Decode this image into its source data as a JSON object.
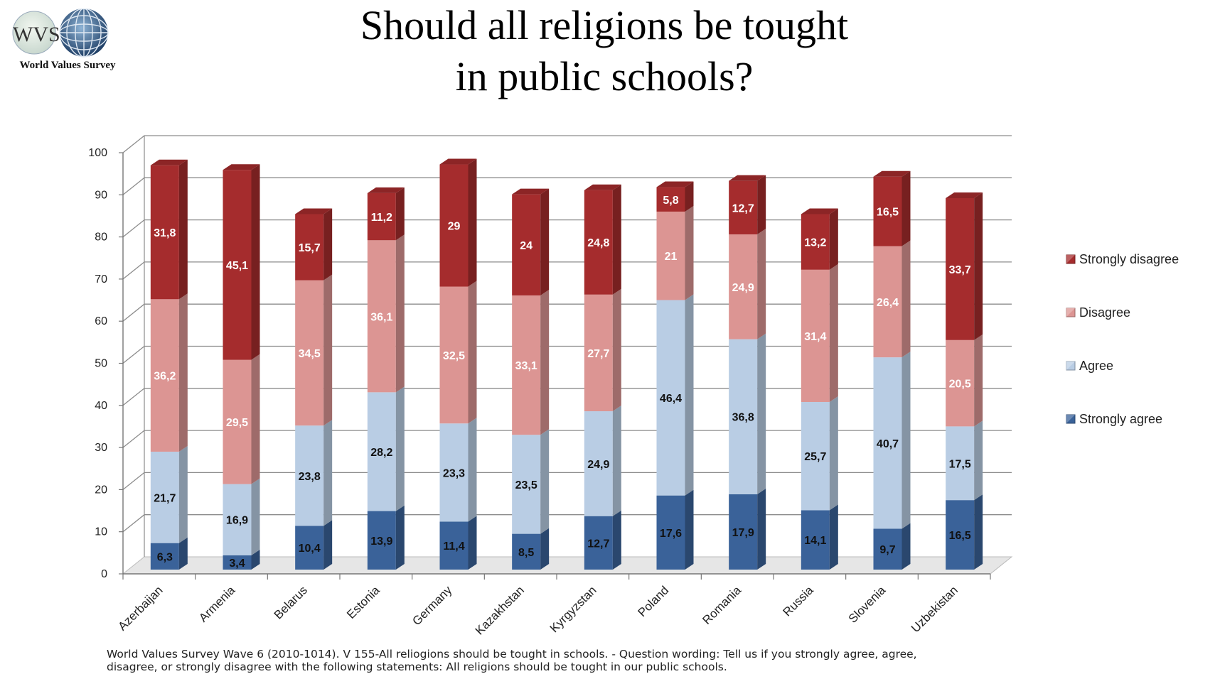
{
  "logo": {
    "mark": "WVS",
    "caption": "World Values Survey",
    "icon": "globe-icon"
  },
  "title": {
    "line1": "Should all religions be tought",
    "line2": "in public schools?"
  },
  "footnote": {
    "line1": "World Values Survey Wave 6 (2010-1014). V 155-All reliogions should be tought in schools. - Question wording: Tell us if you strongly agree, agree,",
    "line2": "disagree, or strongly disagree with the following statements: All religions should be tought in our public schools."
  },
  "colors": {
    "strongly_agree": "#3a6299",
    "agree": "#b9cde4",
    "disagree": "#dc9593",
    "strongly_disagree": "#a52c2d"
  },
  "chart_data": {
    "type": "bar",
    "stacked": true,
    "categories": [
      "Azerbaijan",
      "Armenia",
      "Belarus",
      "Estonia",
      "Germany",
      "Kazakhstan",
      "Kyrgyzstan",
      "Poland",
      "Romania",
      "Russia",
      "Slovenia",
      "Uzbekistan"
    ],
    "series": [
      {
        "name": "Strongly agree",
        "values": [
          6.3,
          3.4,
          10.4,
          13.9,
          11.4,
          8.5,
          12.7,
          17.6,
          17.9,
          14.1,
          9.7,
          16.5
        ],
        "labels": [
          "6,3",
          "3,4",
          "10,4",
          "13,9",
          "11,4",
          "8,5",
          "12,7",
          "17,6",
          "17,9",
          "14,1",
          "9,7",
          "16,5"
        ]
      },
      {
        "name": "Agree",
        "values": [
          21.7,
          16.9,
          23.8,
          28.2,
          23.3,
          23.5,
          24.9,
          46.4,
          36.8,
          25.7,
          40.7,
          17.5
        ],
        "labels": [
          "21,7",
          "16,9",
          "23,8",
          "28,2",
          "23,3",
          "23,5",
          "24,9",
          "46,4",
          "36,8",
          "25,7",
          "40,7",
          "17,5"
        ]
      },
      {
        "name": "Disagree",
        "values": [
          36.2,
          29.5,
          34.5,
          36.1,
          32.5,
          33.1,
          27.7,
          21,
          24.9,
          31.4,
          26.4,
          20.5
        ],
        "labels": [
          "36,2",
          "29,5",
          "34,5",
          "36,1",
          "32,5",
          "33,1",
          "27,7",
          "21",
          "24,9",
          "31,4",
          "26,4",
          "20,5"
        ]
      },
      {
        "name": "Strongly disagree",
        "values": [
          31.8,
          45.1,
          15.7,
          11.2,
          29,
          24,
          24.8,
          5.8,
          12.7,
          13.2,
          16.5,
          33.7
        ],
        "labels": [
          "31,8",
          "45,1",
          "15,7",
          "11,2",
          "29",
          "24",
          "24,8",
          "5,8",
          "12,7",
          "13,2",
          "16,5",
          "33,7"
        ]
      }
    ],
    "legend": [
      "Strongly disagree",
      "Disagree",
      "Agree",
      "Strongly agree"
    ],
    "yticks": [
      "0",
      "10",
      "20",
      "30",
      "40",
      "50",
      "60",
      "70",
      "80",
      "90",
      "100"
    ],
    "ylim": [
      0,
      100
    ],
    "grid": true,
    "legend_position": "right"
  }
}
